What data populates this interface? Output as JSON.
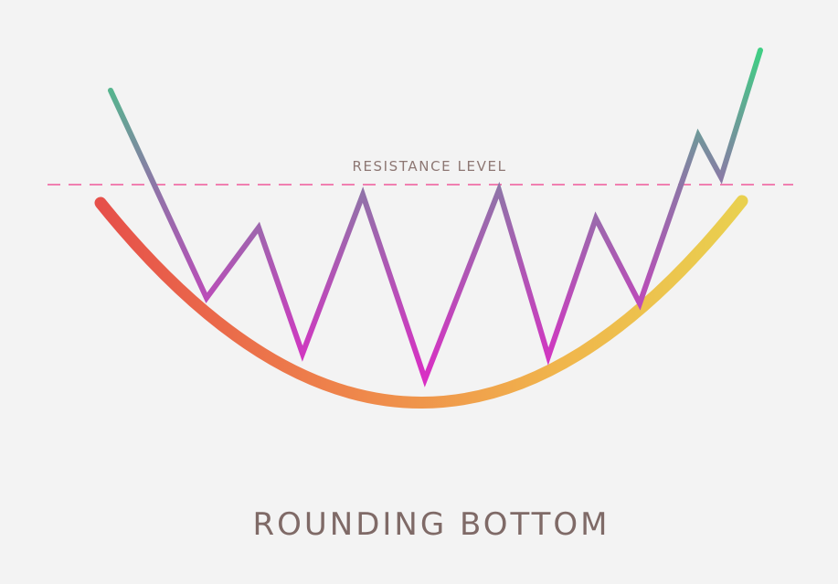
{
  "diagram": {
    "title": "ROUNDING BOTTOM",
    "resistance_label": "RESISTANCE LEVEL",
    "colors": {
      "background": "#f3f3f3",
      "resistance_line": "#f07fb0",
      "text": "#7f6a67",
      "curve_gradient": [
        "#e6504a",
        "#ef8a4b",
        "#f0b64c",
        "#e9d04f"
      ],
      "price_gradient_top": "#3fcf84",
      "price_gradient_mid": "#8f74a8",
      "price_gradient_bottom": "#d92fc4"
    }
  }
}
